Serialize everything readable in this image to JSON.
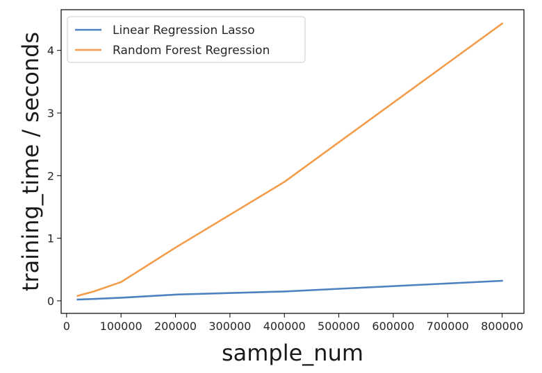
{
  "chart_data": {
    "type": "line",
    "title": "",
    "xlabel": "sample_num",
    "ylabel": "training_time / seconds",
    "xlim": [
      -10000,
      840000
    ],
    "ylim": [
      -0.2,
      4.65
    ],
    "x_ticks": [
      0,
      100000,
      200000,
      300000,
      400000,
      500000,
      600000,
      700000,
      800000
    ],
    "x_tick_labels": [
      "0",
      "100000",
      "200000",
      "300000",
      "400000",
      "500000",
      "600000",
      "700000",
      "800000"
    ],
    "y_ticks": [
      0,
      1,
      2,
      3,
      4
    ],
    "y_tick_labels": [
      "0",
      "1",
      "2",
      "3",
      "4"
    ],
    "grid": false,
    "legend_position": "top-left",
    "series": [
      {
        "name": "Linear Regression Lasso",
        "color": "#4c82c0",
        "points": [
          [
            20000,
            0.02
          ],
          [
            50000,
            0.03
          ],
          [
            100000,
            0.05
          ],
          [
            200000,
            0.1
          ],
          [
            400000,
            0.15
          ],
          [
            800000,
            0.32
          ]
        ]
      },
      {
        "name": "Random Forest Regression",
        "color": "#f39c4a",
        "points": [
          [
            20000,
            0.08
          ],
          [
            50000,
            0.15
          ],
          [
            100000,
            0.3
          ],
          [
            200000,
            0.85
          ],
          [
            400000,
            1.9
          ],
          [
            800000,
            4.43
          ]
        ]
      }
    ]
  }
}
